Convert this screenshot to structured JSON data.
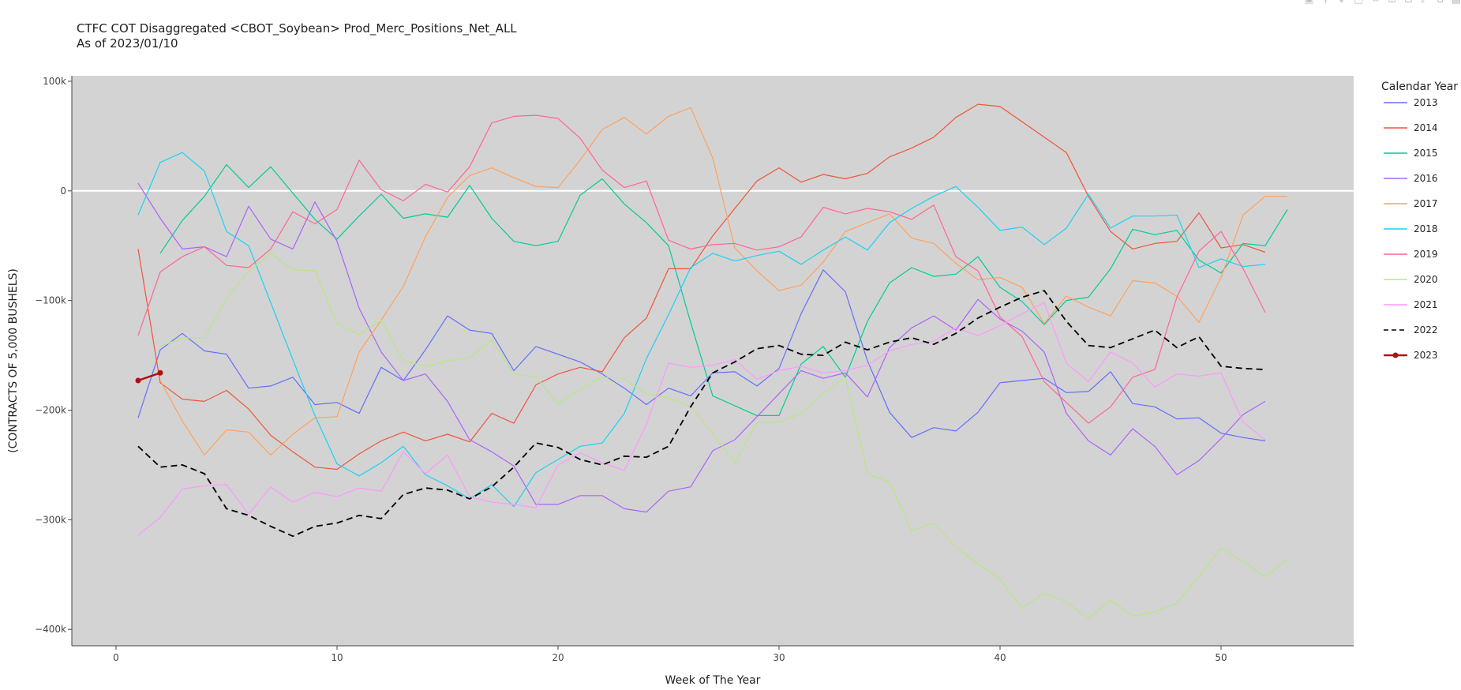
{
  "title": {
    "line1": "CTFC COT Disaggregated <CBOT_Soybean> Prod_Merc_Positions_Net_ALL",
    "line2": "As of 2023/01/10"
  },
  "modebar": [
    "camera-icon",
    "zoom-icon",
    "pan-icon",
    "select-icon",
    "lasso-icon",
    "zoom-in-icon",
    "zoom-out-icon",
    "autoscale-icon",
    "home-icon",
    "plotly-logo-icon"
  ],
  "chart_data": {
    "type": "line",
    "title": "CTFC COT Disaggregated <CBOT_Soybean> Prod_Merc_Positions_Net_ALL",
    "subtitle": "As of 2023/01/10",
    "xlabel": "Week of The Year",
    "ylabel": "(CONTRACTS OF 5,000 BUSHELS)",
    "xlim": [
      -2,
      56
    ],
    "ylim": [
      -415000,
      105000
    ],
    "x_ticks": [
      0,
      10,
      20,
      30,
      40,
      50
    ],
    "x_tick_labels": [
      "0",
      "10",
      "20",
      "30",
      "40",
      "50"
    ],
    "y_ticks": [
      100000,
      0,
      -100000,
      -200000,
      -300000,
      -400000
    ],
    "y_tick_labels": [
      "100k",
      "0",
      "−100k",
      "−200k",
      "−300k",
      "−400k"
    ],
    "plot_background": "#d3d3d3",
    "zero_line": true,
    "grid": false,
    "legend_title": "Calendar Year",
    "legend_position": "right",
    "series": [
      {
        "name": "2013",
        "color": "#636efa",
        "dash": "solid",
        "markers": false,
        "x": [
          1,
          2,
          3,
          4,
          5,
          6,
          7,
          8,
          9,
          10,
          11,
          12,
          13,
          14,
          15,
          16,
          17,
          18,
          19,
          20,
          21,
          22,
          23,
          24,
          25,
          26,
          27,
          28,
          29,
          30,
          31,
          32,
          33,
          34,
          35,
          36,
          37,
          38,
          39,
          40,
          41,
          42,
          43,
          44,
          45,
          46,
          47,
          48,
          49,
          50,
          51,
          52
        ],
        "y": [
          -207000,
          -145000,
          -130000,
          -146000,
          -149000,
          -180000,
          -178000,
          -170000,
          -195000,
          -193000,
          -203000,
          -161000,
          -173000,
          -145000,
          -114000,
          -127000,
          -130000,
          -164000,
          -142000,
          -149000,
          -156000,
          -167000,
          -180000,
          -195000,
          -180000,
          -187000,
          -166000,
          -165000,
          -178000,
          -162000,
          -112000,
          -72000,
          -92000,
          -155000,
          -202000,
          -225000,
          -216000,
          -219000,
          -202000,
          -175000,
          -173000,
          -171000,
          -184000,
          -183000,
          -165000,
          -194000,
          -197000,
          -208000,
          -207000,
          -221000,
          -225000,
          -228000
        ]
      },
      {
        "name": "2014",
        "color": "#ef553b",
        "dash": "solid",
        "markers": false,
        "x": [
          1,
          2,
          3,
          4,
          5,
          6,
          7,
          8,
          9,
          10,
          11,
          12,
          13,
          14,
          15,
          16,
          17,
          18,
          19,
          20,
          21,
          22,
          23,
          24,
          25,
          26,
          27,
          28,
          29,
          30,
          31,
          32,
          33,
          34,
          35,
          36,
          37,
          38,
          39,
          40,
          41,
          42,
          43,
          44,
          45,
          46,
          47,
          48,
          49,
          50,
          51,
          52
        ],
        "y": [
          -53000,
          -175000,
          -190000,
          -192000,
          -182000,
          -199000,
          -223000,
          -238000,
          -252000,
          -254000,
          -240000,
          -228000,
          -220000,
          -228000,
          -222000,
          -229000,
          -203000,
          -212000,
          -177000,
          -167000,
          -161000,
          -165000,
          -134000,
          -116000,
          -71000,
          -71000,
          -41000,
          -16000,
          9000,
          21000,
          8000,
          15000,
          11000,
          16000,
          31000,
          39000,
          49000,
          67000,
          79000,
          77000,
          63000,
          49000,
          35000,
          -5000,
          -37000,
          -53000,
          -48000,
          -46000,
          -20000,
          -52000,
          -49000,
          -56000
        ]
      },
      {
        "name": "2015",
        "color": "#00cc96",
        "dash": "solid",
        "markers": false,
        "x": [
          2,
          3,
          4,
          5,
          6,
          7,
          8,
          9,
          10,
          11,
          12,
          13,
          14,
          15,
          16,
          17,
          18,
          19,
          20,
          21,
          22,
          23,
          24,
          25,
          26,
          27,
          28,
          29,
          30,
          31,
          32,
          33,
          34,
          35,
          36,
          37,
          38,
          39,
          40,
          41,
          42,
          43,
          44,
          45,
          46,
          47,
          48,
          49,
          50,
          51,
          52,
          53
        ],
        "y": [
          -57000,
          -27000,
          -5000,
          24000,
          3000,
          22000,
          -2000,
          -26000,
          -44000,
          -23000,
          -3000,
          -25000,
          -21000,
          -24000,
          5000,
          -25000,
          -46000,
          -50000,
          -46000,
          -4000,
          11000,
          -12000,
          -29000,
          -50000,
          -120000,
          -187000,
          -196000,
          -205000,
          -205000,
          -158000,
          -142000,
          -170000,
          -119000,
          -84000,
          -70000,
          -78000,
          -76000,
          -60000,
          -88000,
          -101000,
          -122000,
          -100000,
          -97000,
          -71000,
          -35000,
          -40000,
          -36000,
          -63000,
          -75000,
          -48000,
          -50000,
          -17000
        ]
      },
      {
        "name": "2016",
        "color": "#ab63fa",
        "dash": "solid",
        "markers": false,
        "x": [
          1,
          2,
          3,
          4,
          5,
          6,
          7,
          8,
          9,
          10,
          11,
          12,
          13,
          14,
          15,
          16,
          17,
          18,
          19,
          20,
          21,
          22,
          23,
          24,
          25,
          26,
          27,
          28,
          29,
          30,
          31,
          32,
          33,
          34,
          35,
          36,
          37,
          38,
          39,
          40,
          41,
          42,
          43,
          44,
          45,
          46,
          47,
          48,
          49,
          50,
          51,
          52
        ],
        "y": [
          7000,
          -25000,
          -53000,
          -51000,
          -60000,
          -14000,
          -44000,
          -53000,
          -10000,
          -46000,
          -107000,
          -147000,
          -173000,
          -167000,
          -192000,
          -227000,
          -238000,
          -251000,
          -286000,
          -286000,
          -278000,
          -278000,
          -290000,
          -293000,
          -274000,
          -270000,
          -237000,
          -227000,
          -206000,
          -185000,
          -164000,
          -171000,
          -166000,
          -188000,
          -143000,
          -125000,
          -114000,
          -127000,
          -99000,
          -117000,
          -128000,
          -147000,
          -203000,
          -228000,
          -241000,
          -217000,
          -233000,
          -259000,
          -246000,
          -226000,
          -204000,
          -192000
        ]
      },
      {
        "name": "2017",
        "color": "#ffa15a",
        "dash": "solid",
        "markers": false,
        "x": [
          2,
          3,
          4,
          5,
          6,
          7,
          8,
          9,
          10,
          11,
          12,
          13,
          14,
          15,
          16,
          17,
          18,
          19,
          20,
          21,
          22,
          23,
          24,
          25,
          26,
          27,
          28,
          29,
          30,
          31,
          32,
          33,
          34,
          35,
          36,
          37,
          38,
          39,
          40,
          41,
          42,
          43,
          44,
          45,
          46,
          47,
          48,
          49,
          50,
          51,
          52,
          53
        ],
        "y": [
          -173000,
          -210000,
          -241000,
          -218000,
          -220000,
          -241000,
          -222000,
          -207000,
          -206000,
          -147000,
          -118000,
          -87000,
          -42000,
          -6000,
          14000,
          21000,
          12000,
          4000,
          3000,
          28000,
          56000,
          67000,
          52000,
          68000,
          76000,
          30000,
          -52000,
          -73000,
          -91000,
          -86000,
          -65000,
          -37000,
          -29000,
          -21000,
          -43000,
          -48000,
          -66000,
          -81000,
          -79000,
          -88000,
          -121000,
          -96000,
          -106000,
          -114000,
          -82000,
          -84000,
          -96000,
          -120000,
          -79000,
          -22000,
          -5000,
          -5000
        ]
      },
      {
        "name": "2018",
        "color": "#19d3f3",
        "dash": "solid",
        "markers": false,
        "x": [
          1,
          2,
          3,
          4,
          5,
          6,
          7,
          8,
          9,
          10,
          11,
          12,
          13,
          14,
          15,
          16,
          17,
          18,
          19,
          20,
          21,
          22,
          23,
          24,
          25,
          26,
          27,
          28,
          29,
          30,
          31,
          32,
          33,
          34,
          35,
          36,
          37,
          38,
          39,
          40,
          41,
          42,
          43,
          44,
          45,
          46,
          47,
          48,
          49,
          50,
          51,
          52
        ],
        "y": [
          -22000,
          26000,
          35000,
          18000,
          -37000,
          -50000,
          -102000,
          -154000,
          -205000,
          -249000,
          -260000,
          -248000,
          -233000,
          -259000,
          -269000,
          -281000,
          -268000,
          -288000,
          -257000,
          -245000,
          -233000,
          -230000,
          -203000,
          -153000,
          -113000,
          -70000,
          -57000,
          -64000,
          -59000,
          -55000,
          -67000,
          -54000,
          -42000,
          -54000,
          -29000,
          -16000,
          -5000,
          4000,
          -15000,
          -36000,
          -33000,
          -49000,
          -34000,
          -3000,
          -34000,
          -23000,
          -23000,
          -22000,
          -70000,
          -62000,
          -69000,
          -67000
        ]
      },
      {
        "name": "2019",
        "color": "#ff6692",
        "dash": "solid",
        "markers": false,
        "x": [
          1,
          2,
          3,
          4,
          5,
          6,
          7,
          8,
          9,
          10,
          11,
          12,
          13,
          14,
          15,
          16,
          17,
          18,
          19,
          20,
          21,
          22,
          23,
          24,
          25,
          26,
          27,
          28,
          29,
          30,
          31,
          32,
          33,
          34,
          35,
          36,
          37,
          38,
          39,
          40,
          41,
          42,
          43,
          44,
          45,
          46,
          47,
          48,
          49,
          50,
          51,
          52
        ],
        "y": [
          -132000,
          -74000,
          -60000,
          -51000,
          -68000,
          -70000,
          -53000,
          -19000,
          -30000,
          -17000,
          28000,
          1000,
          -9000,
          6000,
          -1000,
          22000,
          62000,
          68000,
          69000,
          66000,
          48000,
          19000,
          3000,
          9000,
          -45000,
          -53000,
          -49000,
          -48000,
          -54000,
          -51000,
          -42000,
          -15000,
          -21000,
          -16000,
          -19000,
          -26000,
          -13000,
          -60000,
          -73000,
          -115000,
          -133000,
          -174000,
          -193000,
          -212000,
          -197000,
          -170000,
          -163000,
          -97000,
          -55000,
          -37000,
          -71000,
          -111000
        ]
      },
      {
        "name": "2020",
        "color": "#b6e880",
        "dash": "solid",
        "markers": false,
        "x": [
          2,
          3,
          4,
          5,
          6,
          7,
          8,
          9,
          10,
          11,
          12,
          13,
          14,
          15,
          16,
          17,
          18,
          19,
          20,
          21,
          22,
          23,
          24,
          25,
          26,
          27,
          28,
          29,
          30,
          31,
          32,
          33,
          34,
          35,
          36,
          37,
          38,
          39,
          40,
          41,
          42,
          43,
          44,
          45,
          46,
          47,
          48,
          49,
          50,
          51,
          52,
          53
        ],
        "y": [
          -142000,
          -134000,
          -134000,
          -98000,
          -73000,
          -57000,
          -72000,
          -73000,
          -121000,
          -131000,
          -118000,
          -155000,
          -160000,
          -155000,
          -152000,
          -136000,
          -167000,
          -170000,
          -194000,
          -181000,
          -170000,
          -171000,
          -185000,
          -189000,
          -197000,
          -221000,
          -248000,
          -211000,
          -211000,
          -203000,
          -185000,
          -170000,
          -258000,
          -266000,
          -310000,
          -303000,
          -325000,
          -340000,
          -354000,
          -381000,
          -367000,
          -375000,
          -390000,
          -373000,
          -388000,
          -384000,
          -376000,
          -352000,
          -326000,
          -338000,
          -352000,
          -336000
        ]
      },
      {
        "name": "2021",
        "color": "#ff97ff",
        "dash": "solid",
        "markers": false,
        "x": [
          1,
          2,
          3,
          4,
          5,
          6,
          7,
          8,
          9,
          10,
          11,
          12,
          13,
          14,
          15,
          16,
          17,
          18,
          19,
          20,
          21,
          22,
          23,
          24,
          25,
          26,
          27,
          28,
          29,
          30,
          31,
          32,
          33,
          34,
          35,
          36,
          37,
          38,
          39,
          40,
          41,
          42,
          43,
          44,
          45,
          46,
          47,
          48,
          49,
          50,
          51,
          52
        ],
        "y": [
          -314000,
          -298000,
          -272000,
          -269000,
          -268000,
          -295000,
          -270000,
          -284000,
          -275000,
          -279000,
          -271000,
          -274000,
          -238000,
          -258000,
          -241000,
          -279000,
          -284000,
          -286000,
          -289000,
          -250000,
          -239000,
          -248000,
          -255000,
          -213000,
          -157000,
          -161000,
          -159000,
          -154000,
          -172000,
          -164000,
          -160000,
          -166000,
          -164000,
          -159000,
          -146000,
          -140000,
          -137000,
          -125000,
          -132000,
          -123000,
          -112000,
          -102000,
          -157000,
          -174000,
          -147000,
          -157000,
          -179000,
          -167000,
          -169000,
          -166000,
          -211000,
          -227000
        ]
      },
      {
        "name": "2022",
        "color": "#000000",
        "dash": "dash",
        "markers": false,
        "x": [
          1,
          2,
          3,
          4,
          5,
          6,
          7,
          8,
          9,
          10,
          11,
          12,
          13,
          14,
          15,
          16,
          17,
          18,
          19,
          20,
          21,
          22,
          23,
          24,
          25,
          26,
          27,
          28,
          29,
          30,
          31,
          32,
          33,
          34,
          35,
          36,
          37,
          38,
          39,
          40,
          41,
          42,
          43,
          44,
          45,
          46,
          47,
          48,
          49,
          50,
          51,
          52
        ],
        "y": [
          -233000,
          -252000,
          -250000,
          -258000,
          -290000,
          -296000,
          -306000,
          -315000,
          -306000,
          -303000,
          -296000,
          -299000,
          -277000,
          -271000,
          -273000,
          -281000,
          -270000,
          -252000,
          -230000,
          -234000,
          -245000,
          -250000,
          -242000,
          -243000,
          -233000,
          -197000,
          -166000,
          -156000,
          -144000,
          -141000,
          -149000,
          -150000,
          -138000,
          -145000,
          -138000,
          -134000,
          -140000,
          -130000,
          -116000,
          -106000,
          -97000,
          -91000,
          -119000,
          -141000,
          -143000,
          -135000,
          -127000,
          -143000,
          -133000,
          -160000,
          -162000,
          -163000
        ]
      },
      {
        "name": "2023",
        "color": "#b10f10",
        "dash": "solid",
        "markers": true,
        "x": [
          1,
          2
        ],
        "y": [
          -173000,
          -166000
        ]
      }
    ]
  }
}
